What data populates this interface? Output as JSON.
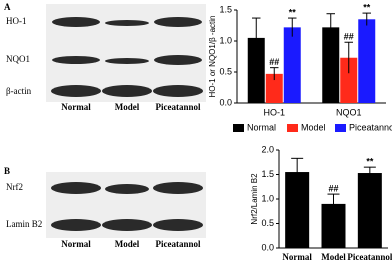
{
  "figure": {
    "panel_a": {
      "label": "A",
      "rows": [
        "HO-1",
        "NQO1",
        "β-actin"
      ],
      "lanes": [
        "Normal",
        "Model",
        "Piceatannol"
      ]
    },
    "panel_b": {
      "label": "B",
      "rows": [
        "Nrf2",
        "Lamin B2"
      ],
      "lanes": [
        "Normal",
        "Model",
        "Piceatannol"
      ]
    }
  },
  "chart_data": [
    {
      "type": "grouped_bar",
      "y_label": "HO-1 or NQO1/β -actin",
      "categories": [
        "HO-1",
        "NQO1"
      ],
      "series": [
        {
          "name": "Normal",
          "color": "#000000",
          "values": [
            1.05,
            1.22
          ],
          "errors": [
            0.32,
            0.22
          ],
          "annotations": [
            null,
            null
          ]
        },
        {
          "name": "Model",
          "color": "#ff2a1a",
          "values": [
            0.47,
            0.73
          ],
          "errors": [
            0.1,
            0.25
          ],
          "annotations": [
            "##",
            "##"
          ]
        },
        {
          "name": "Piceatannol",
          "color": "#1a1aff",
          "values": [
            1.22,
            1.35
          ],
          "errors": [
            0.15,
            0.1
          ],
          "annotations": [
            "**",
            "**"
          ]
        }
      ],
      "ylim": [
        0,
        1.5
      ],
      "yticks": [
        {
          "value": 0,
          "label": "0.0"
        },
        {
          "value": 0.5,
          "label": "0.5"
        },
        {
          "value": 1,
          "label": "1.0"
        },
        {
          "value": 1.5,
          "label": "1.5"
        }
      ],
      "legend": "bottom"
    },
    {
      "type": "bar",
      "y_label": "Nrf2/Lamin B2",
      "categories": [
        "Normal",
        "Model",
        "Piceatannol"
      ],
      "values": [
        1.55,
        0.9,
        1.53
      ],
      "errors": [
        0.28,
        0.2,
        0.12
      ],
      "annotations": [
        null,
        "##",
        "**"
      ],
      "color": "#000000",
      "ylim": [
        0,
        2
      ],
      "yticks": [
        {
          "value": 0,
          "label": "0.0"
        },
        {
          "value": 0.5,
          "label": "0.5"
        },
        {
          "value": 1,
          "label": "1.0"
        },
        {
          "value": 1.5,
          "label": "1.5"
        },
        {
          "value": 2,
          "label": "2.0"
        }
      ]
    }
  ]
}
